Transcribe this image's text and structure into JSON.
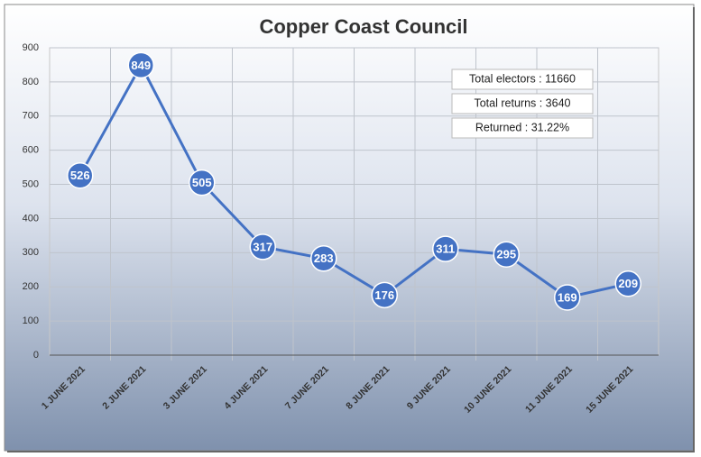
{
  "chart_data": {
    "type": "line",
    "title": "Copper Coast Council",
    "categories": [
      "1 JUNE 2021",
      "2 JUNE 2021",
      "3 JUNE 2021",
      "4 JUNE 2021",
      "7 JUNE 2021",
      "8 JUNE 2021",
      "9 JUNE 2021",
      "10 JUNE 2021",
      "11 JUNE 2021",
      "15 JUNE 2021"
    ],
    "values": [
      526,
      849,
      505,
      317,
      283,
      176,
      311,
      295,
      169,
      209
    ],
    "color": "#4472c4",
    "ylim": [
      0,
      900
    ],
    "yticks": [
      0,
      100,
      200,
      300,
      400,
      500,
      600,
      700,
      800,
      900
    ],
    "grid": true,
    "annotations": [
      "Total electors : 11660",
      "Total returns : 3640",
      "Returned : 31.22%"
    ]
  }
}
